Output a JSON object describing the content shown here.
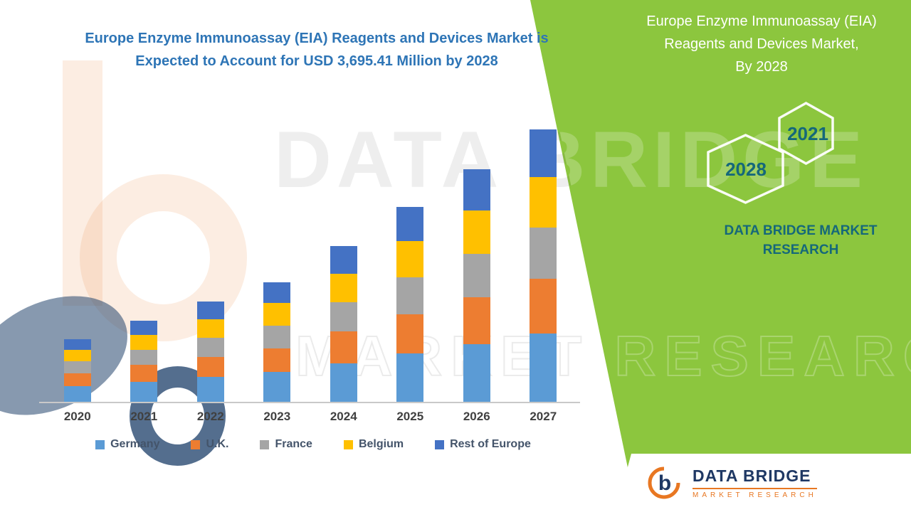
{
  "title": {
    "text": "Europe Enzyme Immunoassay (EIA) Reagents and Devices Market is\nExpected to Account for USD 3,695.41 Million by 2028"
  },
  "chart_data": {
    "type": "bar",
    "stacked": true,
    "title": "Europe Enzyme Immunoassay (EIA) Reagents and Devices Market is Expected to Account for USD 3,695.41 Million by 2028",
    "xlabel": "",
    "ylabel": "",
    "units": "USD Million",
    "ylim": [
      0,
      3500
    ],
    "legend_position": "bottom",
    "grid": false,
    "categories": [
      "2020",
      "2021",
      "2022",
      "2023",
      "2024",
      "2025",
      "2026",
      "2027"
    ],
    "series": [
      {
        "name": "Germany",
        "color": "#5B9BD5",
        "values": [
          190,
          245,
          300,
          360,
          470,
          590,
          700,
          830
        ]
      },
      {
        "name": "U.K.",
        "color": "#ED7D31",
        "values": [
          155,
          200,
          245,
          290,
          380,
          470,
          565,
          660
        ]
      },
      {
        "name": "France",
        "color": "#A5A5A5",
        "values": [
          145,
          185,
          230,
          275,
          355,
          445,
          530,
          620
        ]
      },
      {
        "name": "Belgium",
        "color": "#FFC000",
        "values": [
          140,
          180,
          225,
          270,
          350,
          440,
          525,
          610
        ]
      },
      {
        "name": "Rest of Europe",
        "color": "#4472C4",
        "values": [
          130,
          170,
          220,
          255,
          335,
          415,
          500,
          580
        ]
      }
    ]
  },
  "side_panel": {
    "title": "Europe Enzyme Immunoassay (EIA)\nReagents and Devices Market,\nBy 2028",
    "hex_front_label": "2028",
    "hex_back_label": "2021",
    "brand": "DATA BRIDGE MARKET\nRESEARCH"
  },
  "watermark": {
    "line1": "DATA BRIDGE",
    "line2": "MARKET RESEARCH"
  },
  "footer_logo": {
    "glyph": "b",
    "brand": "DATA BRIDGE",
    "sub": "MARKET RESEARCH"
  },
  "colors": {
    "panel_green": "#8CC63E",
    "title_blue": "#2E75B6",
    "panel_title_white": "#FFFFFF",
    "hex_year_teal": "#15687A",
    "brand_teal": "#15687A",
    "logo_navy": "#1F3864",
    "logo_orange": "#E87722",
    "axis_line": "#C9C9C9",
    "x_label": "#404040",
    "legend_text": "#44546A"
  }
}
